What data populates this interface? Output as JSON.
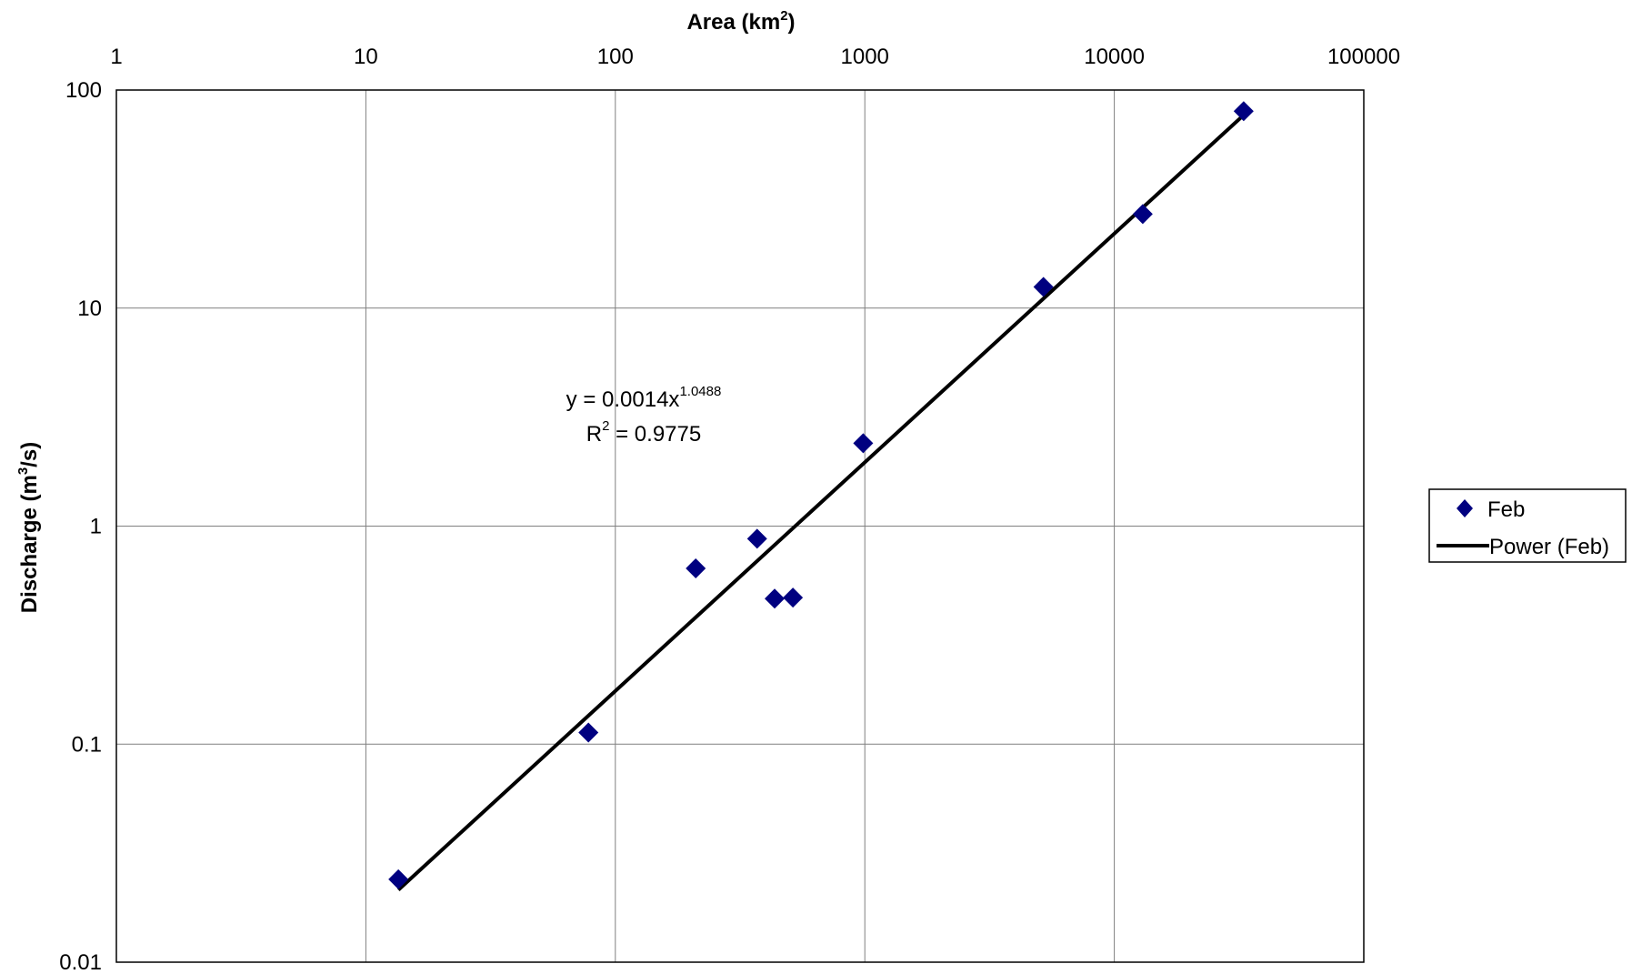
{
  "chart_data": {
    "type": "scatter",
    "x_scale": "log",
    "y_scale": "log",
    "xlim": [
      1,
      100000
    ],
    "ylim": [
      0.01,
      100
    ],
    "grid": true,
    "x_axis_position": "top",
    "legend_position": "right",
    "xlabel": {
      "base": "Area (km",
      "sup": "2",
      "end": ")"
    },
    "ylabel": {
      "base": "Discharge (m",
      "sup": "3",
      "end": "/s)"
    },
    "x_ticks": [
      {
        "value": 1,
        "label": "1"
      },
      {
        "value": 10,
        "label": "10"
      },
      {
        "value": 100,
        "label": "100"
      },
      {
        "value": 1000,
        "label": "1000"
      },
      {
        "value": 10000,
        "label": "10000"
      },
      {
        "value": 100000,
        "label": "100000"
      }
    ],
    "y_ticks": [
      {
        "value": 0.01,
        "label": "0.01"
      },
      {
        "value": 0.1,
        "label": "0.1"
      },
      {
        "value": 1,
        "label": "1"
      },
      {
        "value": 10,
        "label": "10"
      },
      {
        "value": 100,
        "label": "100"
      }
    ],
    "series": [
      {
        "name": "Feb",
        "marker": "diamond",
        "color": "#000080",
        "points": [
          {
            "x": 13.5,
            "y": 0.024
          },
          {
            "x": 78,
            "y": 0.113
          },
          {
            "x": 210,
            "y": 0.64
          },
          {
            "x": 370,
            "y": 0.875
          },
          {
            "x": 435,
            "y": 0.465
          },
          {
            "x": 515,
            "y": 0.47
          },
          {
            "x": 985,
            "y": 2.4
          },
          {
            "x": 5200,
            "y": 12.5
          },
          {
            "x": 13000,
            "y": 27
          },
          {
            "x": 33000,
            "y": 80
          }
        ]
      }
    ],
    "trendline": {
      "name": "Power (Feb)",
      "type": "power",
      "coefficient": 0.0014,
      "exponent": 1.0488,
      "x_range": [
        13.5,
        33000
      ],
      "color": "#000000",
      "equation": {
        "base": "y = 0.0014x",
        "sup": "1.0488"
      },
      "r_squared": {
        "base": "R",
        "sup": "2",
        "end": " = 0.9775"
      }
    }
  }
}
